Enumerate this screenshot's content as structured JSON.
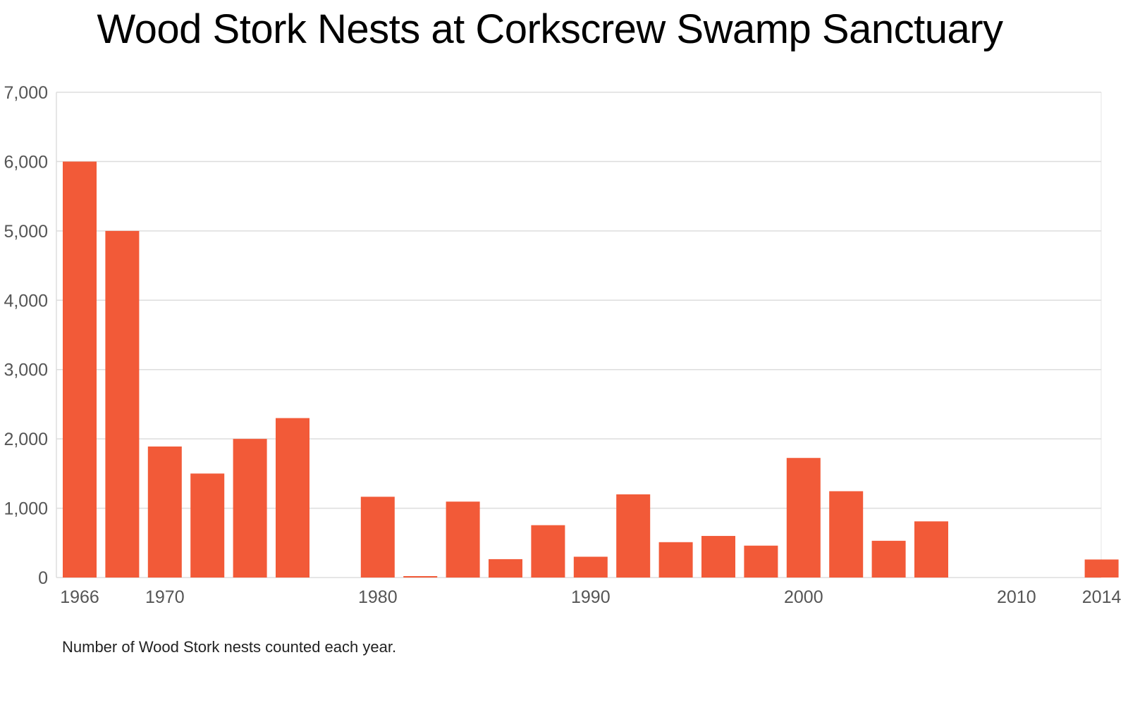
{
  "chart_data": {
    "type": "bar",
    "title": "Wood Stork Nests at Corkscrew Swamp Sanctuary",
    "caption": "Number of Wood Stork nests counted each year.",
    "xlabel": "",
    "ylabel": "",
    "x_range": [
      1966,
      2014
    ],
    "ylim": [
      0,
      7000
    ],
    "y_ticks": [
      0,
      1000,
      2000,
      3000,
      4000,
      5000,
      6000,
      7000
    ],
    "y_tick_labels": [
      "0",
      "1,000",
      "2,000",
      "3,000",
      "4,000",
      "5,000",
      "6,000",
      "7,000"
    ],
    "x_tick_labels": [
      {
        "year": 1966,
        "label": "1966"
      },
      {
        "year": 1970,
        "label": "1970"
      },
      {
        "year": 1980,
        "label": "1980"
      },
      {
        "year": 1990,
        "label": "1990"
      },
      {
        "year": 2000,
        "label": "2000"
      },
      {
        "year": 2010,
        "label": "2010"
      },
      {
        "year": 2014,
        "label": "2014"
      }
    ],
    "grid": true,
    "bar_color": "#f25a38",
    "bars": [
      {
        "year": 1966,
        "value": 6000
      },
      {
        "year": 1968,
        "value": 5000
      },
      {
        "year": 1970,
        "value": 1890
      },
      {
        "year": 1972,
        "value": 1500
      },
      {
        "year": 1974,
        "value": 2000
      },
      {
        "year": 1976,
        "value": 2300
      },
      {
        "year": 1980,
        "value": 1165
      },
      {
        "year": 1982,
        "value": 20
      },
      {
        "year": 1984,
        "value": 1095
      },
      {
        "year": 1986,
        "value": 265
      },
      {
        "year": 1988,
        "value": 755
      },
      {
        "year": 1990,
        "value": 300
      },
      {
        "year": 1992,
        "value": 1200
      },
      {
        "year": 1994,
        "value": 510
      },
      {
        "year": 1996,
        "value": 600
      },
      {
        "year": 1998,
        "value": 460
      },
      {
        "year": 2000,
        "value": 1725
      },
      {
        "year": 2002,
        "value": 1245
      },
      {
        "year": 2004,
        "value": 530
      },
      {
        "year": 2006,
        "value": 810
      },
      {
        "year": 2014,
        "value": 260
      }
    ]
  }
}
